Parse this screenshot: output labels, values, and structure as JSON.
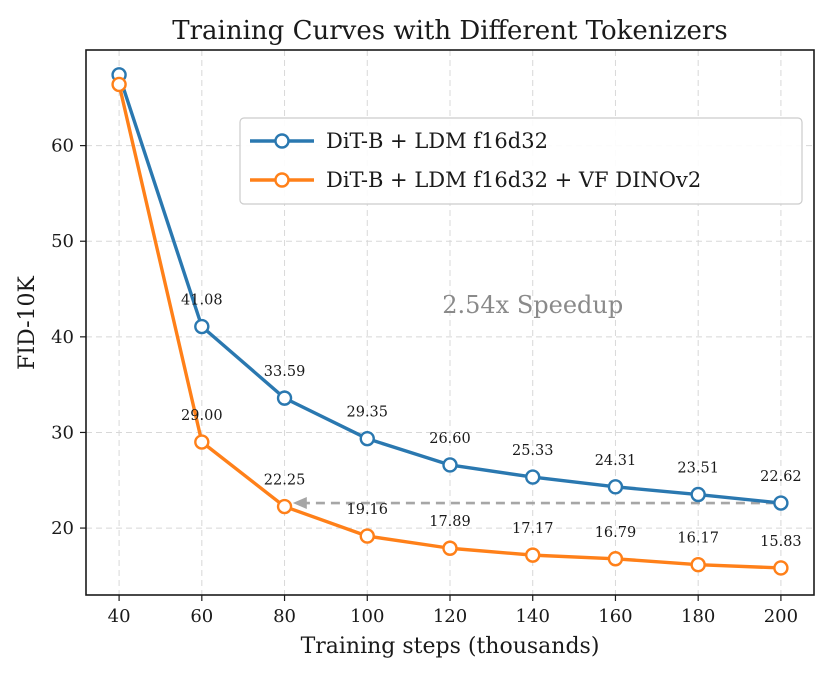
{
  "chart_data": {
    "type": "line",
    "title": "Training Curves with Different Tokenizers",
    "xlabel": "Training steps (thousands)",
    "ylabel": "FID-10K",
    "x": [
      40,
      60,
      80,
      100,
      120,
      140,
      160,
      180,
      200
    ],
    "xticks": [
      40,
      60,
      80,
      100,
      120,
      140,
      160,
      180,
      200
    ],
    "yticks": [
      20,
      30,
      40,
      50,
      60
    ],
    "xlim": [
      32,
      208
    ],
    "ylim": [
      13,
      70
    ],
    "grid": true,
    "legend_position": "upper-right",
    "series": [
      {
        "name": "DiT-B + LDM f16d32",
        "color": "#2a78b0",
        "values": [
          67.4,
          41.08,
          33.59,
          29.35,
          26.6,
          25.33,
          24.31,
          23.51,
          22.62
        ],
        "labels": [
          "",
          "41.08",
          "33.59",
          "29.35",
          "26.60",
          "25.33",
          "24.31",
          "23.51",
          "22.62"
        ]
      },
      {
        "name": "DiT-B + LDM f16d32 + VF DINOv2",
        "color": "#ff8019",
        "values": [
          66.4,
          29.0,
          22.25,
          19.16,
          17.89,
          17.17,
          16.79,
          16.17,
          15.83
        ],
        "labels": [
          "",
          "29.00",
          "22.25",
          "19.16",
          "17.89",
          "17.17",
          "16.79",
          "16.17",
          "15.83"
        ]
      }
    ],
    "annotation": {
      "text": "2.54x Speedup",
      "arrow_from": [
        200,
        22.62
      ],
      "arrow_to": [
        82,
        22.62
      ],
      "arrow_color": "#a6a6a6",
      "text_at": [
        140,
        42.5
      ]
    }
  }
}
